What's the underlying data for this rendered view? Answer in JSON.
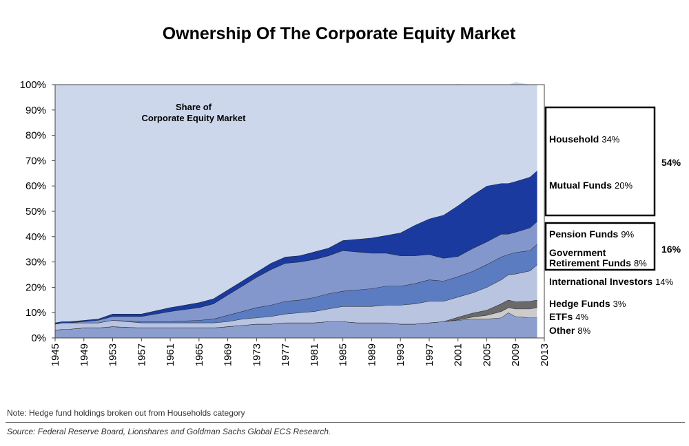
{
  "chart_data": {
    "type": "area",
    "stacked": true,
    "title": "Ownership Of The Corporate Equity Market",
    "inner_label": [
      "Share of",
      "Corporate Equity Market"
    ],
    "ylim": [
      0,
      100
    ],
    "y_ticks": [
      "0%",
      "10%",
      "20%",
      "30%",
      "40%",
      "50%",
      "60%",
      "70%",
      "80%",
      "90%",
      "100%"
    ],
    "xlim": [
      1945,
      2013
    ],
    "x_ticks": [
      "1945",
      "1949",
      "1953",
      "1957",
      "1961",
      "1965",
      "1969",
      "1973",
      "1977",
      "1981",
      "1985",
      "1989",
      "1993",
      "1997",
      "2001",
      "2005",
      "2009",
      "2013"
    ],
    "x": [
      1945,
      1946,
      1947,
      1949,
      1951,
      1953,
      1957,
      1961,
      1965,
      1967,
      1969,
      1971,
      1973,
      1975,
      1977,
      1979,
      1981,
      1983,
      1985,
      1987,
      1989,
      1991,
      1993,
      1995,
      1997,
      1999,
      2001,
      2003,
      2005,
      2007,
      2008,
      2009,
      2011,
      2012
    ],
    "series": [
      {
        "name": "Other",
        "color": "#8c9ecd",
        "values": [
          3,
          3.5,
          3.5,
          4,
          4,
          4.5,
          4,
          4,
          4,
          4,
          4.5,
          5,
          5.5,
          5.5,
          6,
          6,
          6,
          6.5,
          6.5,
          6,
          6,
          6,
          5.5,
          5.5,
          6,
          6.5,
          7,
          7.5,
          7.5,
          8,
          10,
          8.5,
          8,
          8
        ]
      },
      {
        "name": "ETFs",
        "color": "#cccccc",
        "values": [
          0,
          0,
          0,
          0,
          0,
          0,
          0,
          0,
          0,
          0,
          0,
          0,
          0,
          0,
          0,
          0,
          0,
          0,
          0,
          0,
          0,
          0,
          0,
          0,
          0,
          0,
          0.2,
          0.8,
          1.5,
          2.5,
          2,
          3,
          3.5,
          4
        ]
      },
      {
        "name": "Hedge Funds",
        "color": "#6a6a6a",
        "values": [
          0,
          0,
          0,
          0,
          0,
          0,
          0,
          0,
          0,
          0,
          0,
          0,
          0,
          0,
          0,
          0,
          0,
          0,
          0,
          0,
          0,
          0,
          0,
          0,
          0,
          0,
          1,
          1.5,
          2,
          3,
          3,
          2.8,
          3,
          3
        ]
      },
      {
        "name": "International Investors",
        "color": "#b8c4e0",
        "values": [
          2.5,
          2.5,
          2.5,
          2,
          2,
          2.5,
          2,
          2,
          2,
          2,
          2,
          2.5,
          2.5,
          3,
          3.5,
          4,
          4.5,
          5,
          6,
          6.5,
          6.5,
          7,
          7.5,
          8,
          8.5,
          8,
          8,
          8,
          9,
          9.5,
          10,
          11,
          12,
          14
        ]
      },
      {
        "name": "Government Retirement Funds",
        "color": "#5b7cc0",
        "values": [
          0,
          0,
          0,
          0,
          0,
          0,
          0.5,
          0.5,
          1,
          1.5,
          2.5,
          3,
          4,
          4.5,
          5,
          5,
          5.5,
          6,
          6,
          6.5,
          7,
          7.5,
          7.5,
          8,
          8.5,
          8,
          8,
          8.5,
          9,
          9,
          8,
          8.5,
          8,
          8
        ]
      },
      {
        "name": "Pension Funds",
        "color": "#8497cc",
        "values": [
          0,
          0,
          0,
          0.5,
          1,
          1.5,
          2,
          4,
          5,
          6,
          8,
          10,
          12,
          14,
          15,
          15,
          15,
          15,
          16,
          15,
          14,
          13,
          12,
          11,
          10,
          9,
          8,
          9,
          9,
          9,
          8,
          8,
          9,
          9
        ]
      },
      {
        "name": "Mutual Funds",
        "color": "#1a3aa0",
        "values": [
          0.5,
          0.5,
          0.5,
          0.5,
          0.5,
          1,
          1,
          1.5,
          2,
          2,
          2,
          2,
          2,
          2.5,
          2.5,
          2.5,
          3,
          3,
          4,
          5,
          6,
          7,
          9,
          12,
          14,
          17,
          20,
          21,
          22,
          20,
          20,
          20,
          20,
          20
        ]
      },
      {
        "name": "Household",
        "color": "#cdd7ec",
        "values": [
          94,
          93.5,
          93.5,
          93,
          92.5,
          90.5,
          90.5,
          88,
          86,
          84.5,
          81,
          77.5,
          74,
          70.5,
          68,
          67.5,
          66,
          64.5,
          61.5,
          61,
          60.5,
          59.5,
          58.5,
          55.5,
          53,
          51.5,
          48,
          43.7,
          40,
          39,
          39,
          39.2,
          36.5,
          34
        ]
      }
    ],
    "legend": {
      "groups": [
        {
          "total": "54%",
          "items": [
            {
              "name": "Household",
              "value": "34%"
            },
            {
              "name": "Mutual Funds",
              "value": "20%"
            }
          ]
        },
        {
          "total": "16%",
          "items": [
            {
              "name": "Pension Funds",
              "value": "9%"
            },
            {
              "name": "Government",
              "name2": "Retirement Funds",
              "value": "8%"
            }
          ]
        }
      ],
      "items": [
        {
          "name": "International Investors",
          "value": "14%"
        },
        {
          "name": "Hedge Funds",
          "value": "3%"
        },
        {
          "name": "ETFs",
          "value": "4%"
        },
        {
          "name": "Other",
          "value": "8%"
        }
      ]
    }
  },
  "footer": {
    "note": "Note: Hedge fund holdings broken out from Households category",
    "source": "Source: Federal Reserve Board, Lionshares and Goldman Sachs Global ECS Research."
  }
}
